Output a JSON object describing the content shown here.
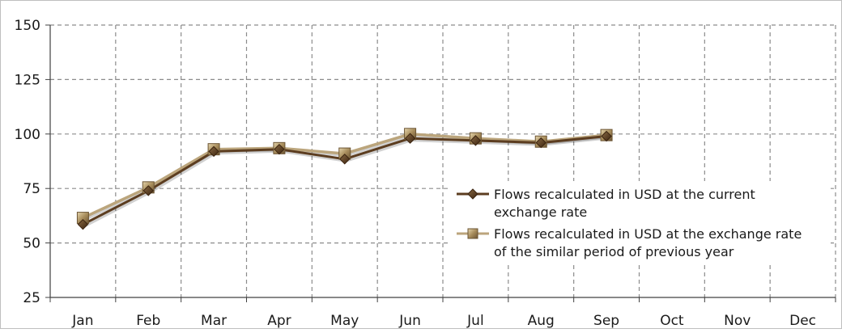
{
  "chart_data": {
    "type": "line",
    "categories": [
      "Jan",
      "Feb",
      "Mar",
      "Apr",
      "May",
      "Jun",
      "Jul",
      "Aug",
      "Sep",
      "Oct",
      "Nov",
      "Dec"
    ],
    "ylim": [
      25,
      150
    ],
    "yticks": [
      25,
      50,
      75,
      100,
      125,
      150
    ],
    "grid": true,
    "legend_position": "right-middle",
    "series": [
      {
        "name": "Flows recalculated in USD at the current exchange rate",
        "legend_lines": [
          "Flows recalculated in USD at the current",
          "exchange rate"
        ],
        "marker": "diamond",
        "color": "#5c3d20",
        "values": [
          58.5,
          74,
          92,
          93,
          88.5,
          98,
          97,
          96,
          99,
          null,
          null,
          null
        ]
      },
      {
        "name": "Flows recalculated in USD at the exchange rate of the similar period of previous year",
        "legend_lines": [
          "Flows recalculated in USD at the exchange rate",
          "of the similar period of previous year"
        ],
        "marker": "square",
        "color": "#bba57c",
        "values": [
          61.5,
          75.5,
          93,
          93.5,
          91,
          100,
          98,
          96.5,
          99.5,
          null,
          null,
          null
        ]
      }
    ]
  }
}
